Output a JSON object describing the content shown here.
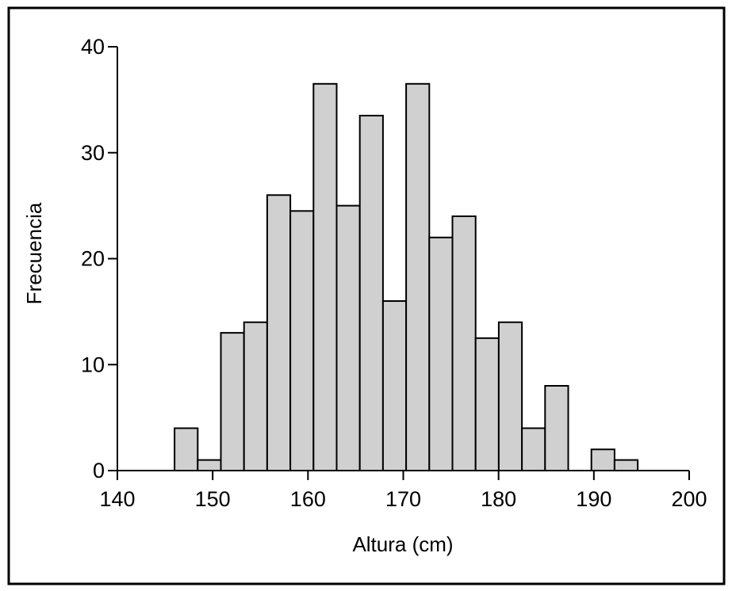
{
  "chart_data": {
    "type": "bar",
    "xlabel": "Altura (cm)",
    "ylabel": "Frecuencia",
    "xlim": [
      140,
      200
    ],
    "ylim": [
      0,
      40
    ],
    "x_ticks": [
      "140",
      "150",
      "160",
      "170",
      "180",
      "190",
      "200"
    ],
    "y_ticks": [
      "0",
      "10",
      "20",
      "30",
      "40"
    ],
    "bin_width": 2.43,
    "bin_start": 146,
    "values": [
      4,
      1,
      13,
      14,
      26,
      24.5,
      36.5,
      25,
      33.5,
      16,
      36.5,
      22,
      24,
      12.5,
      14,
      4,
      8,
      0,
      2,
      1
    ],
    "grid": false,
    "bar_color": "#d0d0d0",
    "edge_color": "#000000"
  }
}
